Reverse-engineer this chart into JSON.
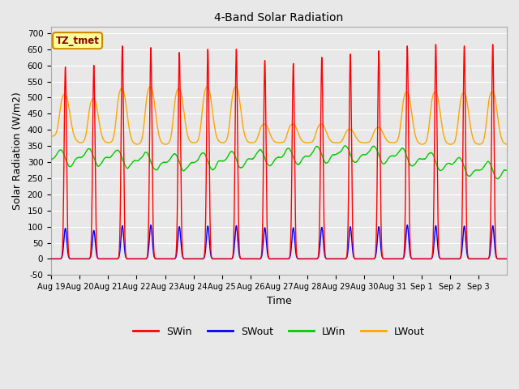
{
  "title": "4-Band Solar Radiation",
  "xlabel": "Time",
  "ylabel": "Solar Radiation (W/m2)",
  "ylim": [
    -50,
    720
  ],
  "bg_color": "#e8e8e8",
  "grid_color": "white",
  "colors": {
    "SWin": "#ff0000",
    "SWout": "#0000ff",
    "LWin": "#00cc00",
    "LWout": "#ffa500"
  },
  "n_days": 16,
  "SWin_peaks": [
    595,
    600,
    660,
    655,
    640,
    650,
    650,
    615,
    606,
    625,
    635,
    645,
    660,
    665,
    660,
    665
  ],
  "SWout_peaks": [
    95,
    88,
    103,
    105,
    100,
    102,
    103,
    97,
    97,
    98,
    100,
    100,
    105,
    103,
    102,
    103
  ],
  "LWin_base": [
    310,
    315,
    315,
    305,
    300,
    300,
    305,
    310,
    315,
    320,
    325,
    325,
    320,
    310,
    295,
    275
  ],
  "LWout_night": [
    380,
    360,
    360,
    355,
    355,
    360,
    360,
    360,
    360,
    360,
    360,
    360,
    360,
    355,
    355,
    355
  ],
  "LWout_day_peaks": [
    505,
    490,
    520,
    525,
    520,
    525,
    525,
    415,
    415,
    415,
    400,
    405,
    510,
    510,
    507,
    510
  ],
  "tick_labels": [
    "Aug 19",
    "Aug 20",
    "Aug 21",
    "Aug 22",
    "Aug 23",
    "Aug 24",
    "Aug 25",
    "Aug 26",
    "Aug 27",
    "Aug 28",
    "Aug 29",
    "Aug 30",
    "Aug 31",
    "Sep 1",
    "Sep 2",
    "Sep 3"
  ],
  "note_text": "TZ_tmet",
  "note_bg": "#ffff99",
  "note_border": "#cc8800",
  "note_text_color": "#8B0000"
}
